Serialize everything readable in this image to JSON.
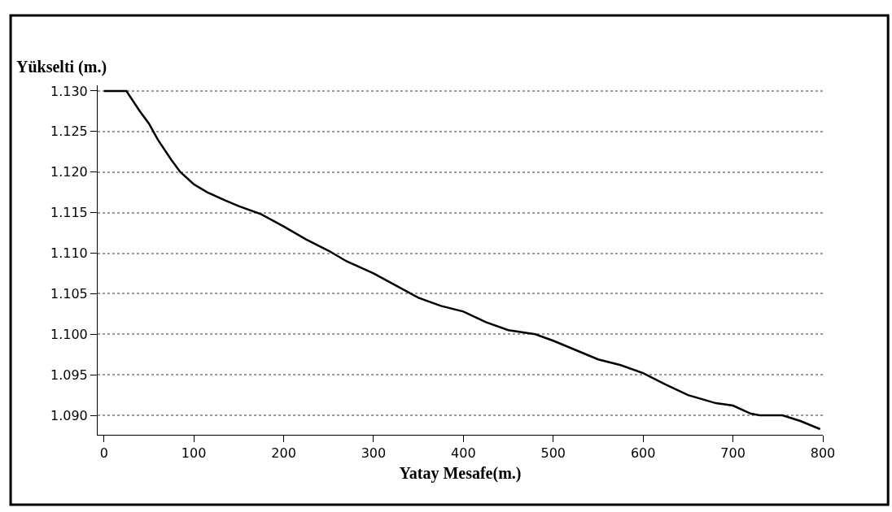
{
  "chart_data": {
    "type": "line",
    "xlabel": "Yatay Mesafe(m.)",
    "ylabel": "Yükselti (m.)",
    "x": [
      0,
      25,
      40,
      50,
      60,
      75,
      85,
      100,
      115,
      135,
      150,
      175,
      200,
      225,
      250,
      270,
      300,
      325,
      350,
      375,
      400,
      425,
      450,
      480,
      500,
      550,
      575,
      600,
      625,
      650,
      681,
      700,
      720,
      730,
      755,
      775,
      797
    ],
    "series": [
      {
        "color": "#000000",
        "values": [
          1.13,
          1.13,
          1.1275,
          1.126,
          1.124,
          1.1215,
          1.12,
          1.1185,
          1.1175,
          1.1165,
          1.1158,
          1.1148,
          1.1133,
          1.1117,
          1.1103,
          1.109,
          1.1075,
          1.106,
          1.1045,
          1.1035,
          1.1028,
          1.1015,
          1.1005,
          1.1,
          1.0992,
          1.0969,
          1.0962,
          1.0952,
          1.0938,
          1.0925,
          1.0915,
          1.0912,
          1.0902,
          1.09,
          1.09,
          1.0893,
          1.0883
        ]
      }
    ],
    "xlim": [
      -7,
      800
    ],
    "ylim": [
      1.0876,
      1.1307
    ],
    "xticks": [
      0,
      100,
      200,
      300,
      400,
      500,
      600,
      700,
      800
    ],
    "yticks": [
      {
        "value": 1.13,
        "label": "1.130"
      },
      {
        "value": 1.125,
        "label": "1.125"
      },
      {
        "value": 1.12,
        "label": "1.120"
      },
      {
        "value": 1.115,
        "label": "1.115"
      },
      {
        "value": 1.11,
        "label": "1.110"
      },
      {
        "value": 1.105,
        "label": "1.105"
      },
      {
        "value": 1.1,
        "label": "1.100"
      },
      {
        "value": 1.095,
        "label": "1.095"
      },
      {
        "value": 1.09,
        "label": "1.090"
      }
    ],
    "grid": "y",
    "legend": false,
    "marker": "none",
    "line_style": "solid"
  }
}
